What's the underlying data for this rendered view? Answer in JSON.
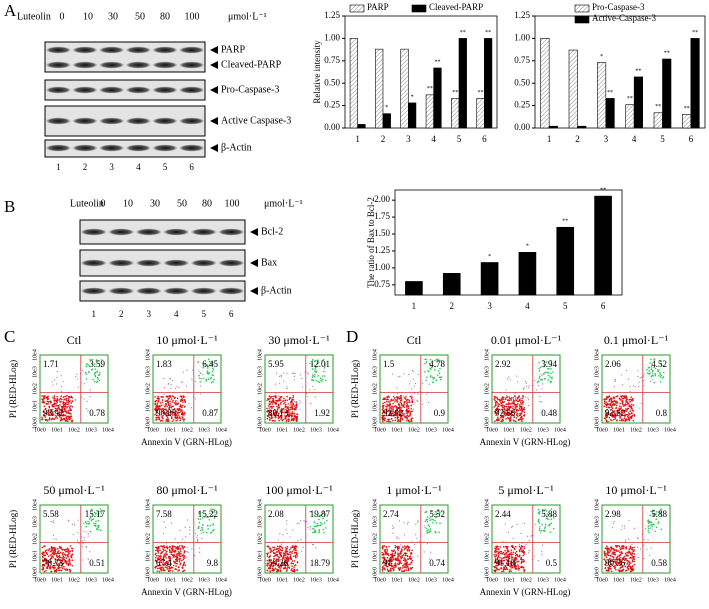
{
  "panel_labels": [
    "A",
    "B",
    "C",
    "D"
  ],
  "blots": [
    {
      "treatment": "Luteolin",
      "doses": [
        "0",
        "10",
        "30",
        "50",
        "80",
        "100"
      ],
      "unit": "μmol·L⁻¹",
      "lanes": [
        "1",
        "2",
        "3",
        "4",
        "5",
        "6"
      ],
      "bands": [
        "PARP",
        "Cleaved-PARP",
        "Pro-Caspase-3",
        "Active Caspase-3",
        "β-Actin"
      ]
    },
    {
      "treatment": "Luteolin",
      "doses": [
        "0",
        "10",
        "30",
        "50",
        "80",
        "100"
      ],
      "unit": "μmol·L⁻¹",
      "lanes": [
        "1",
        "2",
        "3",
        "4",
        "5",
        "6"
      ],
      "bands": [
        "Bcl-2",
        "Bax",
        "β-Actin"
      ]
    }
  ],
  "chart_data": [
    {
      "type": "bar",
      "y_label": "Relative intensity",
      "categories": [
        "1",
        "2",
        "3",
        "4",
        "5",
        "6"
      ],
      "series": [
        {
          "name": "PARP",
          "color": "#ffffff",
          "hatch": true,
          "values": [
            1.0,
            0.88,
            0.88,
            0.37,
            0.33,
            0.33
          ],
          "annotations": [
            null,
            null,
            null,
            "**",
            "**",
            "**"
          ]
        },
        {
          "name": "Cleaved-PARP",
          "color": "#000000",
          "hatch": false,
          "values": [
            0.04,
            0.16,
            0.28,
            0.67,
            1.0,
            1.0
          ],
          "annotations": [
            null,
            "*",
            "*",
            "**",
            "**",
            "**"
          ]
        }
      ],
      "ylim": [
        0,
        1.25
      ],
      "yticks": [
        {
          "value": 0,
          "label": "0.00"
        },
        {
          "value": 0.25,
          "label": "0.25"
        },
        {
          "value": 0.5,
          "label": "0.50"
        },
        {
          "value": 0.75,
          "label": "0.75"
        },
        {
          "value": 1,
          "label": "1.00"
        },
        {
          "value": 1.25,
          "label": "1.25"
        }
      ],
      "legend": "top"
    },
    {
      "type": "bar",
      "categories": [
        "1",
        "2",
        "3",
        "4",
        "5",
        "6"
      ],
      "series": [
        {
          "name": "Pro-Caspase-3",
          "color": "#ffffff",
          "hatch": true,
          "values": [
            1.0,
            0.87,
            0.73,
            0.26,
            0.17,
            0.15
          ],
          "annotations": [
            null,
            null,
            "*",
            "**",
            "**",
            "**"
          ]
        },
        {
          "name": "Active-Caspase-3",
          "color": "#000000",
          "hatch": false,
          "values": [
            0.02,
            0.02,
            0.33,
            0.57,
            0.77,
            1.0
          ],
          "annotations": [
            null,
            null,
            "**",
            "**",
            "**",
            "**"
          ]
        }
      ],
      "ylim": [
        0,
        1.25
      ],
      "yticks": [
        {
          "value": 0,
          "label": "0.00"
        },
        {
          "value": 0.25,
          "label": "0.25"
        },
        {
          "value": 0.5,
          "label": "0.50"
        },
        {
          "value": 0.75,
          "label": "0.75"
        },
        {
          "value": 1,
          "label": "1.00"
        },
        {
          "value": 1.25,
          "label": "1.25"
        }
      ],
      "legend": "top-right"
    },
    {
      "type": "bar",
      "y_label": "The ratio of Bax to Bcl-2",
      "categories": [
        "1",
        "2",
        "3",
        "4",
        "5",
        "6"
      ],
      "series": [
        {
          "color": "#000000",
          "hatch": false,
          "values": [
            0.8,
            0.92,
            1.08,
            1.23,
            1.6,
            2.06
          ],
          "annotations": [
            null,
            null,
            "*",
            "*",
            "**",
            "**"
          ]
        }
      ],
      "ylim": [
        0.6,
        2.15
      ],
      "yticks": [
        {
          "value": 0.75,
          "label": "0.75"
        },
        {
          "value": 1,
          "label": "1.00"
        },
        {
          "value": 1.25,
          "label": "1.25"
        },
        {
          "value": 1.5,
          "label": "1.50"
        },
        {
          "value": 1.75,
          "label": "1.75"
        },
        {
          "value": 2,
          "label": "2.00"
        }
      ]
    }
  ],
  "flow": [
    {
      "x_label": "Annexin V (GRN-HLog)",
      "y_label": "PI (RED-HLog)",
      "axis_ticks": [
        "10e0",
        "10e1",
        "10e2",
        "10e3",
        "10e4"
      ],
      "plots": [
        {
          "title": "Ctl",
          "quadrants": [
            "1.71",
            "3.59",
            "93.92",
            "0.78"
          ]
        },
        {
          "title": "10 μmol·L⁻¹",
          "quadrants": [
            "1.83",
            "6.45",
            "90.85",
            "0.87"
          ]
        },
        {
          "title": "30 μmol·L⁻¹",
          "quadrants": [
            "5.95",
            "12.01",
            "80.13",
            "1.92"
          ]
        },
        {
          "title": "50 μmol·L⁻¹",
          "quadrants": [
            "5.58",
            "15.17",
            "78.73",
            "0.51"
          ]
        },
        {
          "title": "80 μmol·L⁻¹",
          "quadrants": [
            "7.58",
            "15.22",
            "67.4",
            "9.8"
          ]
        },
        {
          "title": "100 μmol·L⁻¹",
          "quadrants": [
            "2.08",
            "19.87",
            "59.26",
            "18.79"
          ]
        }
      ]
    },
    {
      "x_label": "Annexin V (GRN-HLog)",
      "y_label": "PI (RED-HLog)",
      "axis_ticks": [
        "10e0",
        "10e1",
        "10e2",
        "10e3",
        "10e4"
      ],
      "plots": [
        {
          "title": "Ctl",
          "quadrants": [
            "1.5",
            "4.78",
            "92.82",
            "0.9"
          ]
        },
        {
          "title": "0.01 μmol·L⁻¹",
          "quadrants": [
            "2.92",
            "3.94",
            "92.66",
            "0.48"
          ]
        },
        {
          "title": "0.1 μmol·L⁻¹",
          "quadrants": [
            "2.06",
            "4.52",
            "92.62",
            "0.8"
          ]
        },
        {
          "title": "1 μmol·L⁻¹",
          "quadrants": [
            "2.74",
            "5.52",
            "91",
            "0.74"
          ]
        },
        {
          "title": "5 μmol·L⁻¹",
          "quadrants": [
            "2.44",
            "5.88",
            "91.18",
            "0.5"
          ]
        },
        {
          "title": "10 μmol·L⁻¹",
          "quadrants": [
            "2.98",
            "5.88",
            "90.56",
            "0.58"
          ]
        }
      ]
    }
  ]
}
